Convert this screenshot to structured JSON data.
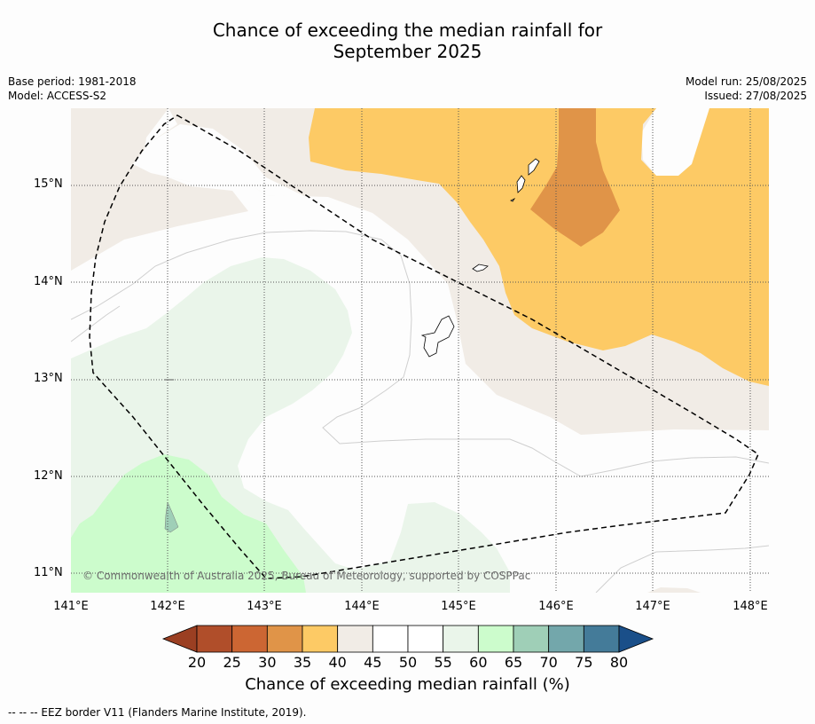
{
  "title_line1": "Chance of exceeding the median rainfall for",
  "title_line2": "September 2025",
  "base_period": "Base period: 1981-2018",
  "model": "Model: ACCESS-S2",
  "model_run": "Model run: 25/08/2025",
  "issued": "Issued: 27/08/2025",
  "copyright": "© Commonwealth of Australia 2025, Bureau of Meteorology, supported by COSPPac",
  "lat_labels": [
    "15°N",
    "14°N",
    "13°N",
    "12°N",
    "11°N"
  ],
  "lon_labels": [
    "141°E",
    "142°E",
    "143°E",
    "144°E",
    "145°E",
    "146°E",
    "147°E",
    "148°E"
  ],
  "colorbar": {
    "ticks": [
      "20",
      "25",
      "30",
      "35",
      "40",
      "45",
      "50",
      "55",
      "60",
      "65",
      "70",
      "75",
      "80"
    ],
    "colors": [
      "#b04e2a",
      "#cc6633",
      "#e09448",
      "#fdca65",
      "#f1ece6",
      "#ffffff",
      "#ffffff",
      "#eaf5ea",
      "#ccfccc",
      "#9fcfb7",
      "#73a7ab",
      "#447b99"
    ],
    "under_color": "#9b3f22",
    "over_color": "#1a4f89",
    "label": "Chance of exceeding median rainfall (%)"
  },
  "footer": "--  --  -- EEZ border V11 (Flanders Marine Institute, 2019)."
}
